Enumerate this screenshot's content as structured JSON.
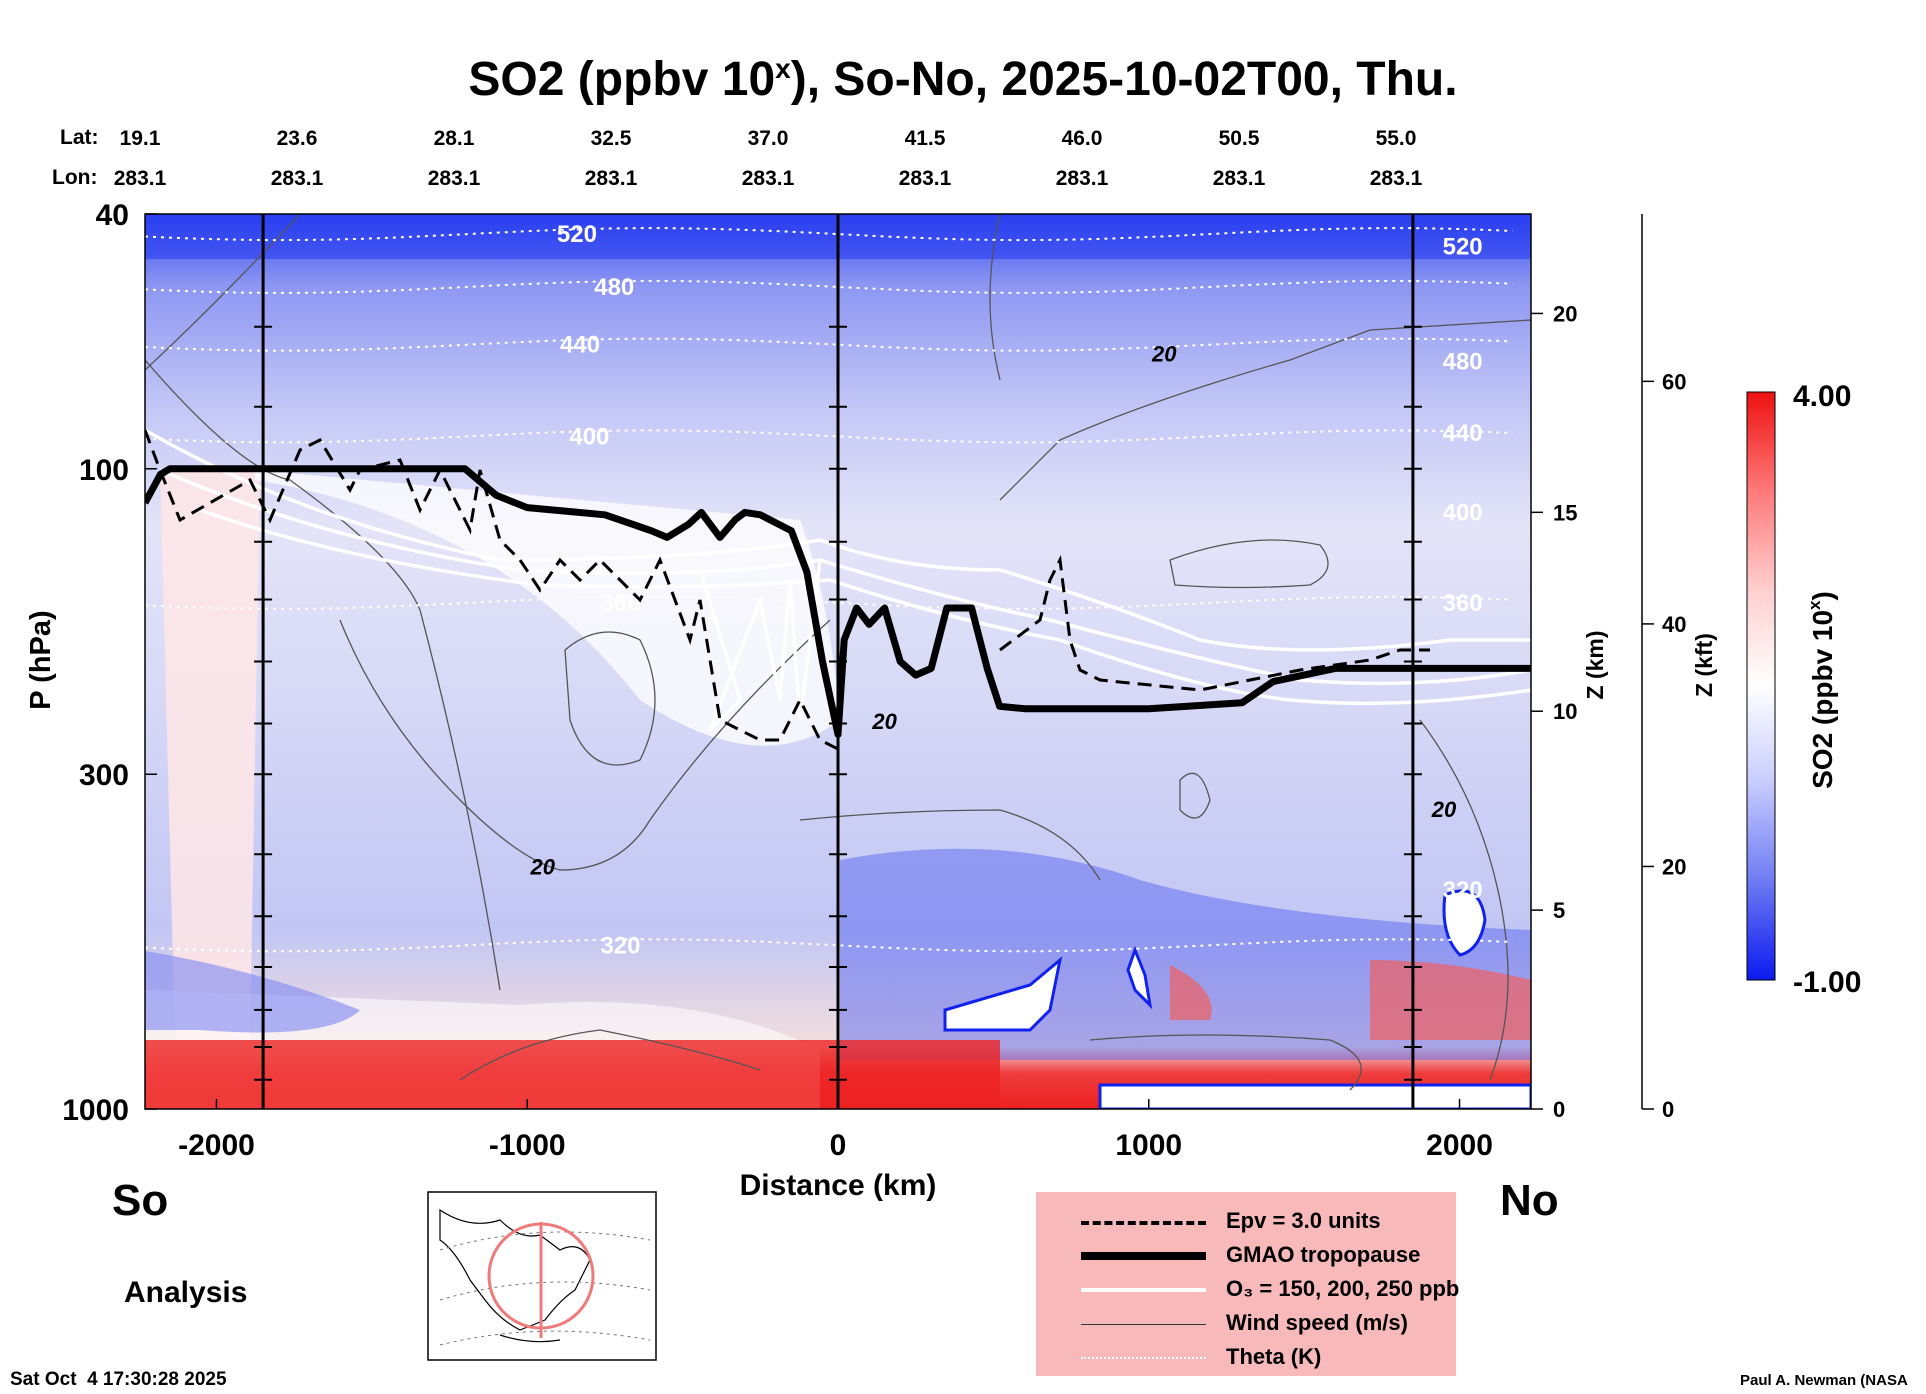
{
  "header": {
    "title_prefix": "SO2 (ppbv 10",
    "title_sup": "x",
    "title_suffix": "), So-No, 2025-10-02T00, Thu.",
    "lat_label": "Lat:",
    "lon_label": "Lon:",
    "lats": [
      "19.1",
      "23.6",
      "28.1",
      "32.5",
      "37.0",
      "41.5",
      "46.0",
      "50.5",
      "55.0"
    ],
    "lons": [
      "283.1",
      "283.1",
      "283.1",
      "283.1",
      "283.1",
      "283.1",
      "283.1",
      "283.1",
      "283.1"
    ]
  },
  "footer": {
    "south": "So",
    "north": "No",
    "analysis": "Analysis",
    "timestamp": "Sat Oct  4 17:30:28 2025",
    "credit": "Paul A. Newman (NASA"
  },
  "legend": {
    "items": [
      {
        "label": "Epv = 3.0 units",
        "style": "dashed"
      },
      {
        "label": "GMAO tropopause",
        "style": "thick"
      },
      {
        "label": "O₃ = 150, 200, 250 ppb",
        "style": "white"
      },
      {
        "label": "Wind speed (m/s)",
        "style": "thin"
      },
      {
        "label": "Theta (K)",
        "style": "dotted"
      }
    ]
  },
  "colorbar": {
    "max_label": "4.00",
    "min_label": "-1.00",
    "title": "SO2 (ppbv 10",
    "title_sup": "x",
    "title_end": ")",
    "colors": [
      "#0b1bf0",
      "#6f7cf2",
      "#c9ceff",
      "#ffffff",
      "#ffd0d0",
      "#ff7a7a",
      "#ee1111"
    ]
  },
  "chart_data": {
    "type": "heatmap",
    "title": "SO2 (ppbv 10^x), So-No, 2025-10-02T00, Thu.",
    "xlabel": "Distance (km)",
    "ylabel": "P (hPa)",
    "z_km_label": "Z (km)",
    "z_kft_label": "Z (kft)",
    "xlim": [
      -2230,
      2230
    ],
    "ylim": [
      1000,
      40
    ],
    "y_scale": "log",
    "x_ticks": [
      -2000,
      -1000,
      0,
      1000,
      2000
    ],
    "x_tick_labels": [
      "-2000",
      "-1000",
      "0",
      "1000",
      "2000"
    ],
    "y_ticks": [
      40,
      100,
      300,
      1000
    ],
    "y_tick_labels": [
      "40",
      "100",
      "300",
      "1000"
    ],
    "z_km_ticks": [
      0,
      5,
      10,
      15,
      20
    ],
    "z_km_tick_labels": [
      "0",
      "5",
      "10",
      "15",
      "20"
    ],
    "z_kft_ticks": [
      0,
      20,
      40,
      60
    ],
    "z_kft_tick_labels": [
      "0",
      "20",
      "40",
      "60"
    ],
    "vertical_lines_km": [
      -1850,
      0,
      1850
    ],
    "colorbar_range": [
      -1.0,
      4.0
    ],
    "theta_levels": [
      {
        "label": "520",
        "p": 43,
        "label_x": -840
      },
      {
        "label": "480",
        "p": 52,
        "label_x": -720
      },
      {
        "label": "440",
        "p": 64,
        "label_x": -830
      },
      {
        "label": "400",
        "p": 89,
        "label_x": -800
      },
      {
        "label": "360",
        "p": 162,
        "label_x": -700
      },
      {
        "label": "320",
        "p": 555,
        "label_x": -700
      }
    ],
    "theta_right_labels": [
      {
        "label": "520",
        "p": 45
      },
      {
        "label": "480",
        "p": 68
      },
      {
        "label": "440",
        "p": 88
      },
      {
        "label": "400",
        "p": 117
      },
      {
        "label": "360",
        "p": 162
      },
      {
        "label": "320",
        "p": 455
      }
    ],
    "tropopause": {
      "x": [
        -2230,
        -2180,
        -2150,
        -1850,
        -1500,
        -1200,
        -1100,
        -1000,
        -750,
        -600,
        -550,
        -480,
        -440,
        -380,
        -330,
        -300,
        -250,
        -150,
        -100,
        -50,
        0,
        20,
        60,
        100,
        150,
        200,
        250,
        300,
        350,
        430,
        480,
        520,
        600,
        800,
        1000,
        1300,
        1400,
        1600,
        1800,
        2000,
        2230
      ],
      "p": [
        113,
        102,
        100,
        100,
        100,
        100,
        110,
        115,
        118,
        125,
        128,
        122,
        117,
        128,
        120,
        117,
        118,
        125,
        145,
        200,
        260,
        185,
        165,
        175,
        165,
        200,
        210,
        205,
        165,
        165,
        205,
        235,
        237,
        237,
        237,
        232,
        215,
        205,
        205,
        205,
        205
      ]
    },
    "wind_speed_labels": [
      {
        "label": "20",
        "x": -950,
        "p": 430
      },
      {
        "label": "20",
        "x": 150,
        "p": 255
      },
      {
        "label": "20",
        "x": 1050,
        "p": 68
      },
      {
        "label": "20",
        "x": 1950,
        "p": 350
      }
    ]
  }
}
